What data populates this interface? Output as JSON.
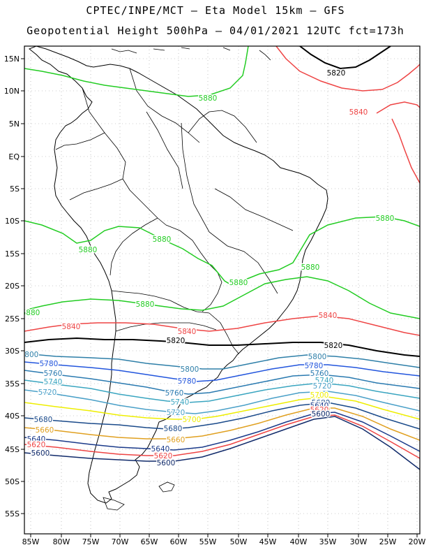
{
  "header": {
    "line1": "CPTEC/INPE/MCT –  Eta Model 15km – GFS",
    "line2": "Geopotential Height 500hPa – 04/01/2021 12UTC fct=173h"
  },
  "colors": {
    "c5880": "#22cc22",
    "c5840": "#ee4444",
    "c5820": "#000000",
    "c5800": "#2e7fa8",
    "c5780": "#2255dd",
    "c5760": "#2a7ab0",
    "c5740": "#3aa5c0",
    "c5720": "#4aa0c8",
    "c5700": "#eeee00",
    "c5680": "#1a4a8a",
    "c5660": "#e0a020",
    "c5640": "#1a3a8a",
    "c5620": "#ee4444",
    "c5600": "#102a6a",
    "coast": "#000000",
    "grid": "#999999"
  },
  "map": {
    "x_ticks": [
      "85W",
      "80W",
      "75W",
      "70W",
      "65W",
      "60W",
      "55W",
      "50W",
      "45W",
      "40W",
      "35W",
      "30W",
      "25W",
      "20W"
    ],
    "y_ticks": [
      "15N",
      "10N",
      "5N",
      "EQ",
      "5S",
      "10S",
      "15S",
      "20S",
      "25S",
      "30S",
      "35S",
      "40S",
      "45S",
      "50S",
      "55S"
    ],
    "contours": [
      {
        "value": 5880,
        "label": "5880",
        "color_key": "c5880"
      },
      {
        "value": 5840,
        "label": "5840",
        "color_key": "c5840"
      },
      {
        "value": 5820,
        "label": "5820",
        "color_key": "c5820"
      },
      {
        "value": 5800,
        "label": "5800",
        "color_key": "c5800"
      },
      {
        "value": 5780,
        "label": "5780",
        "color_key": "c5780"
      },
      {
        "value": 5760,
        "label": "5760",
        "color_key": "c5760"
      },
      {
        "value": 5740,
        "label": "5740",
        "color_key": "c5740"
      },
      {
        "value": 5720,
        "label": "5720",
        "color_key": "c5720"
      },
      {
        "value": 5700,
        "label": "5700",
        "color_key": "c5700"
      },
      {
        "value": 5680,
        "label": "5680",
        "color_key": "c5680"
      },
      {
        "value": 5660,
        "label": "5660",
        "color_key": "c5660"
      },
      {
        "value": 5640,
        "label": "5640",
        "color_key": "c5640"
      },
      {
        "value": 5620,
        "label": "5620",
        "color_key": "c5620"
      },
      {
        "value": 5600,
        "label": "5600",
        "color_key": "c5600"
      }
    ]
  }
}
